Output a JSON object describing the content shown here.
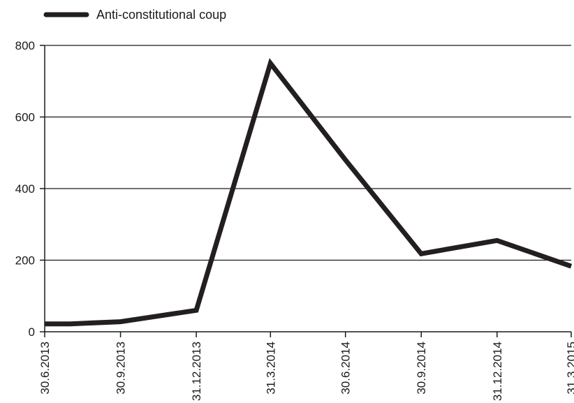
{
  "chart_data": {
    "type": "line",
    "title": "",
    "xlabel": "",
    "ylabel": "",
    "x": [
      "30.6.2013",
      "31.7.2013",
      "30.9.2013",
      "31.12.2013",
      "31.3.2014",
      "30.6.2014",
      "30.9.2014",
      "31.12.2014",
      "31.3.2015"
    ],
    "x_days": [
      0,
      31,
      92,
      184,
      274,
      365,
      457,
      549,
      639
    ],
    "x_ticks": [
      "30.6.2013",
      "30.9.2013",
      "31.12.2013",
      "31.3.2014",
      "30.6.2014",
      "30.9.2014",
      "31.12.2014",
      "31.3.2015"
    ],
    "series": [
      {
        "name": "Anti-constitutional coup",
        "values": [
          22,
          22,
          28,
          60,
          750,
          480,
          218,
          255,
          183
        ],
        "color": "#231f20"
      }
    ],
    "y_ticks": [
      0,
      200,
      400,
      600,
      800
    ],
    "ylim": [
      0,
      800
    ],
    "grid": true,
    "legend": "top-left"
  }
}
